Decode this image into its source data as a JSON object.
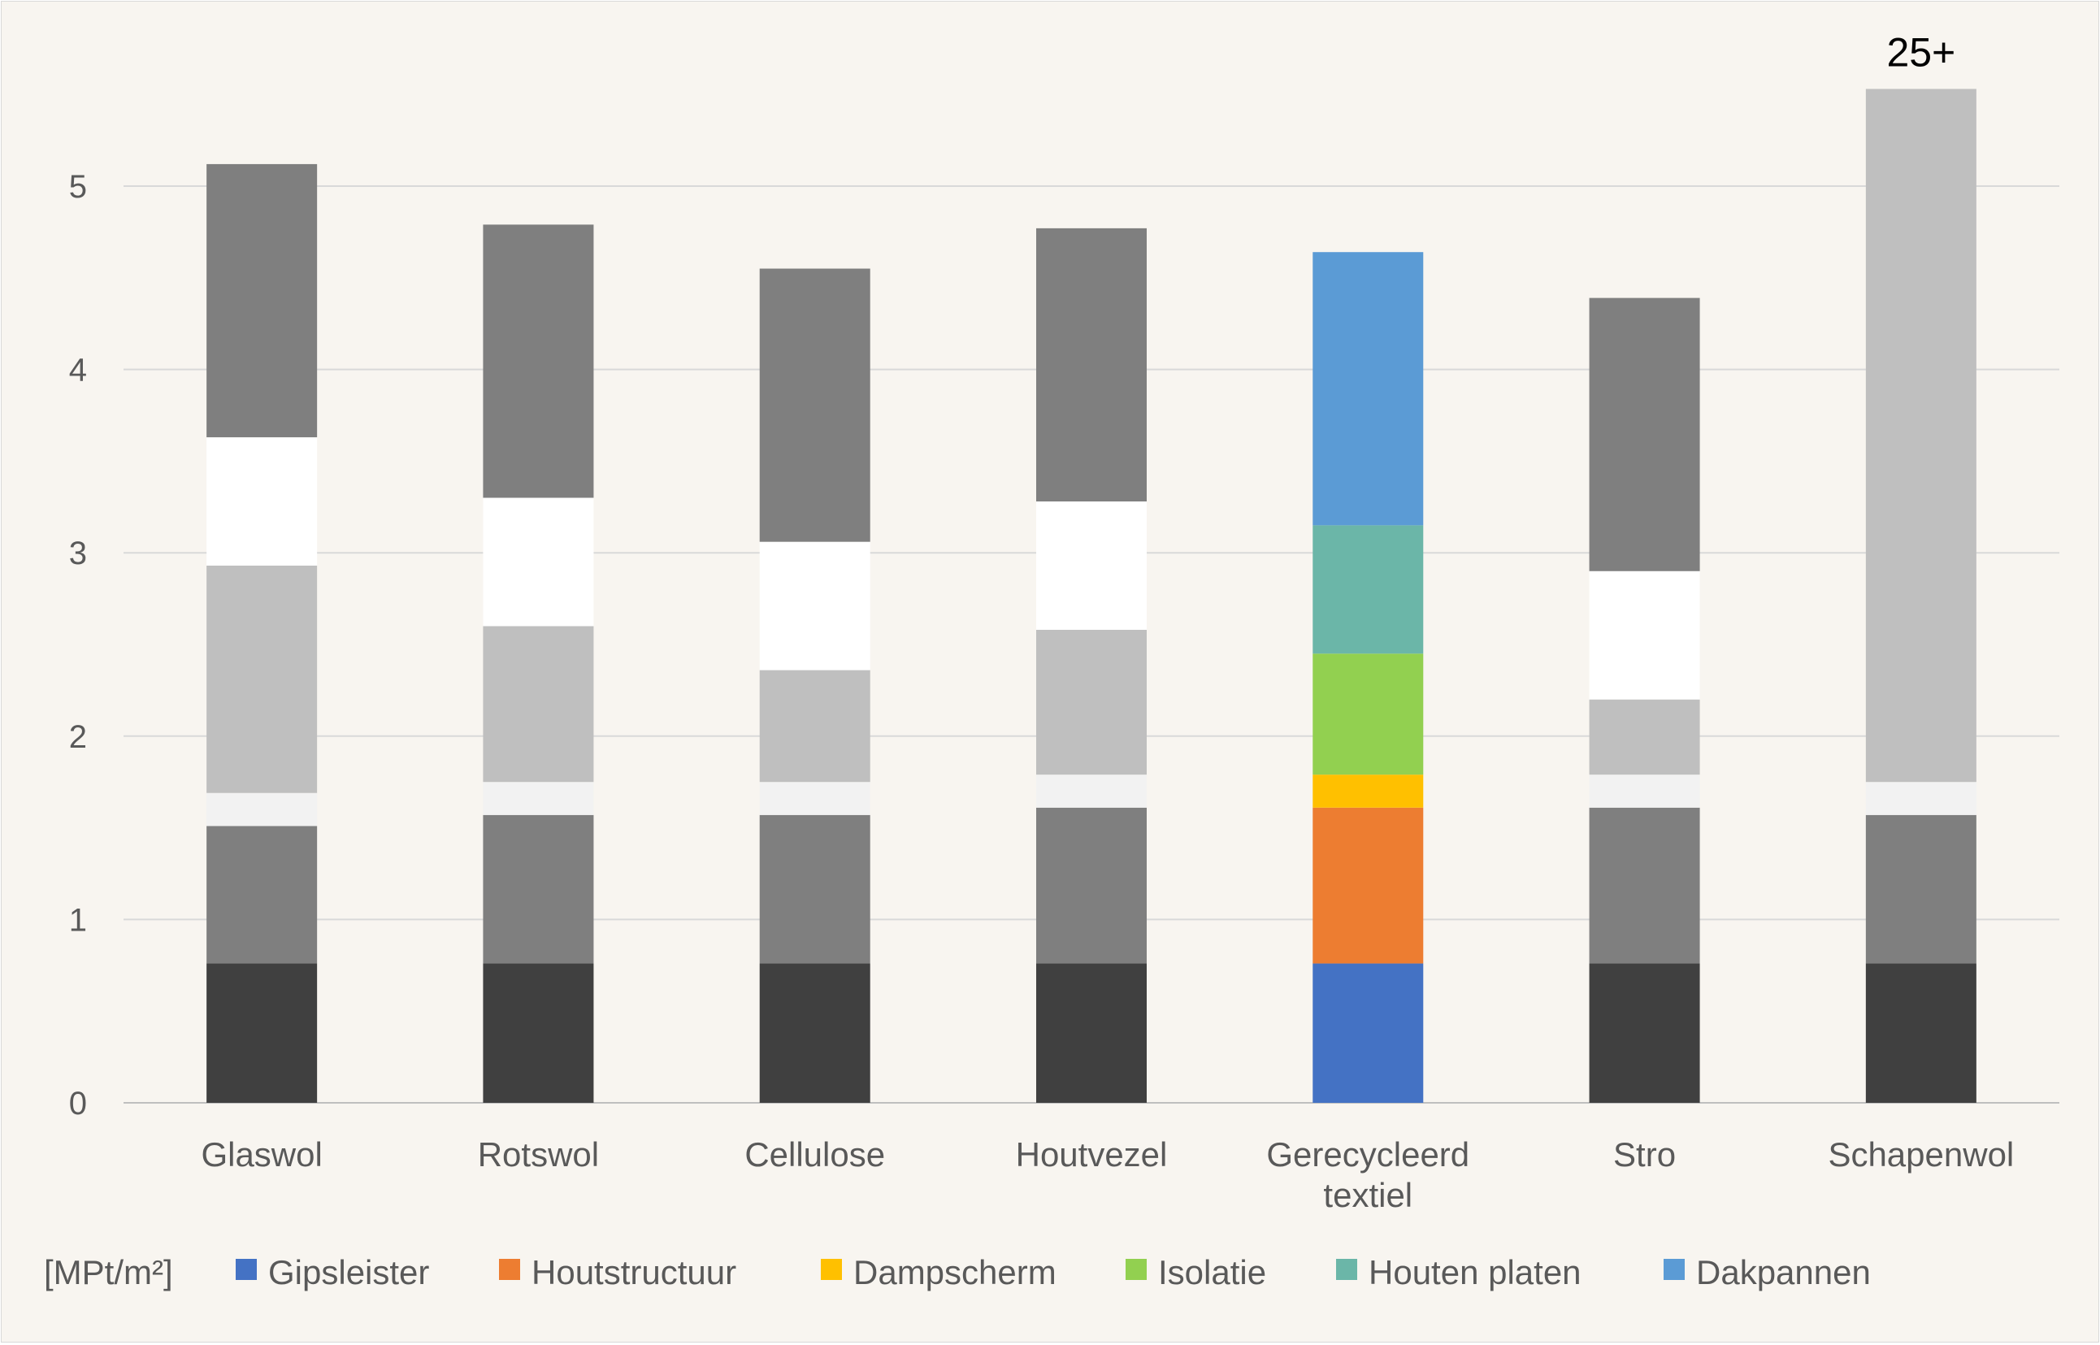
{
  "chart_data": {
    "type": "bar",
    "stacked": true,
    "categories": [
      [
        "Glaswol"
      ],
      [
        "Rotswol"
      ],
      [
        "Cellulose"
      ],
      [
        "Houtvezel"
      ],
      [
        "Gerecycleerd",
        "textiel"
      ],
      [
        "Stro"
      ],
      [
        "Schapenwol"
      ]
    ],
    "ylim": [
      0,
      5.5
    ],
    "yticks": [
      "0",
      "1",
      "2",
      "3",
      "4",
      "5"
    ],
    "ylabel": "[MPt/m²]",
    "grid": true,
    "legend_position": "bottom",
    "series": [
      {
        "name": "Gipsleister",
        "values": [
          0.76,
          0.76,
          0.76,
          0.76,
          0.76,
          0.76,
          0.76
        ]
      },
      {
        "name": "Houtstructuur",
        "values": [
          0.75,
          0.81,
          0.81,
          0.85,
          0.85,
          0.85,
          0.81
        ]
      },
      {
        "name": "Dampscherm",
        "values": [
          0.18,
          0.18,
          0.18,
          0.18,
          0.18,
          0.18,
          0.18
        ]
      },
      {
        "name": "Isolatie",
        "values": [
          1.24,
          0.85,
          0.61,
          0.79,
          0.66,
          0.41,
          3.78
        ]
      },
      {
        "name": "Houten platen",
        "values": [
          0.7,
          0.7,
          0.7,
          0.7,
          0.7,
          0.7,
          0
        ]
      },
      {
        "name": "Dakpannen",
        "values": [
          1.49,
          1.49,
          1.49,
          1.49,
          1.49,
          1.49,
          0
        ]
      }
    ],
    "legend_colors": [
      "#4472c4",
      "#ed7d31",
      "#ffc000",
      "#92d050",
      "#6bb6a8",
      "#5b9bd5"
    ],
    "highlight_category_index": 4,
    "gray_colors": [
      "#404040",
      "#7f7f7f",
      "#f2f2f2",
      "#bfbfbf",
      "#ffffff",
      "#7f7f7f"
    ],
    "annotations": [
      {
        "category_index": 6,
        "text": "25+"
      }
    ]
  }
}
